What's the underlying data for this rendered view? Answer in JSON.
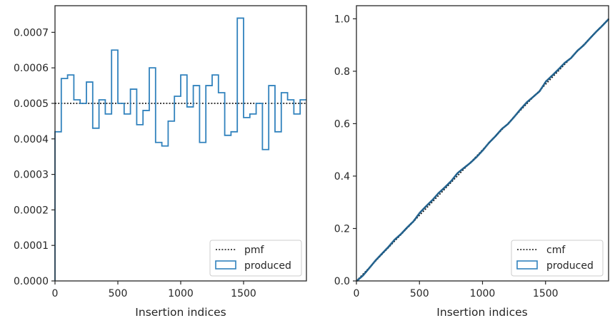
{
  "colors": {
    "hist": "#3182bd",
    "ref_line": "#111111",
    "axes": "#262626",
    "cmf_fill_line": "#1f4e79"
  },
  "chart_data": [
    {
      "type": "histogram-step",
      "title": "",
      "xlabel": "Insertion indices",
      "ylabel": "",
      "xlim": [
        0,
        2000
      ],
      "ylim": [
        0,
        0.000775
      ],
      "xticks": [
        0,
        500,
        1000,
        1500
      ],
      "xtick_labels": [
        "0",
        "500",
        "1000",
        "1500"
      ],
      "yticks": [
        0,
        0.0001,
        0.0002,
        0.0003,
        0.0004,
        0.0005,
        0.0006,
        0.0007
      ],
      "ytick_labels": [
        "0.0000",
        "0.0001",
        "0.0002",
        "0.0003",
        "0.0004",
        "0.0005",
        "0.0006",
        "0.0007"
      ],
      "bin_width": 50,
      "bin_values": [
        0.00042,
        0.00057,
        0.00058,
        0.00051,
        0.0005,
        0.00056,
        0.00043,
        0.00051,
        0.00047,
        0.00065,
        0.0005,
        0.00047,
        0.00054,
        0.00044,
        0.00048,
        0.0006,
        0.00039,
        0.00038,
        0.00045,
        0.00052,
        0.00058,
        0.00049,
        0.00055,
        0.00039,
        0.00055,
        0.00058,
        0.00053,
        0.00041,
        0.00042,
        0.00074,
        0.00046,
        0.00047,
        0.0005,
        0.00037,
        0.00055,
        0.00042,
        0.00053,
        0.00051,
        0.00047,
        0.00051
      ],
      "reference": {
        "name": "pmf",
        "value": 0.0005
      },
      "legend": {
        "location": "lower right",
        "entries": [
          "pmf",
          "produced"
        ]
      }
    },
    {
      "type": "cumulative-step",
      "title": "",
      "xlabel": "Insertion indices",
      "ylabel": "",
      "xlim": [
        0,
        2000
      ],
      "ylim": [
        0,
        1.05
      ],
      "xticks": [
        0,
        500,
        1000,
        1500
      ],
      "xtick_labels": [
        "0",
        "500",
        "1000",
        "1500"
      ],
      "yticks": [
        0,
        0.2,
        0.4,
        0.6,
        0.8,
        1.0
      ],
      "ytick_labels": [
        "0.0",
        "0.2",
        "0.4",
        "0.6",
        "0.8",
        "1.0"
      ],
      "reference": {
        "name": "cmf",
        "from": [
          0,
          0
        ],
        "to": [
          2000,
          1.0
        ]
      },
      "legend": {
        "location": "lower right",
        "entries": [
          "cmf",
          "produced"
        ]
      }
    }
  ]
}
